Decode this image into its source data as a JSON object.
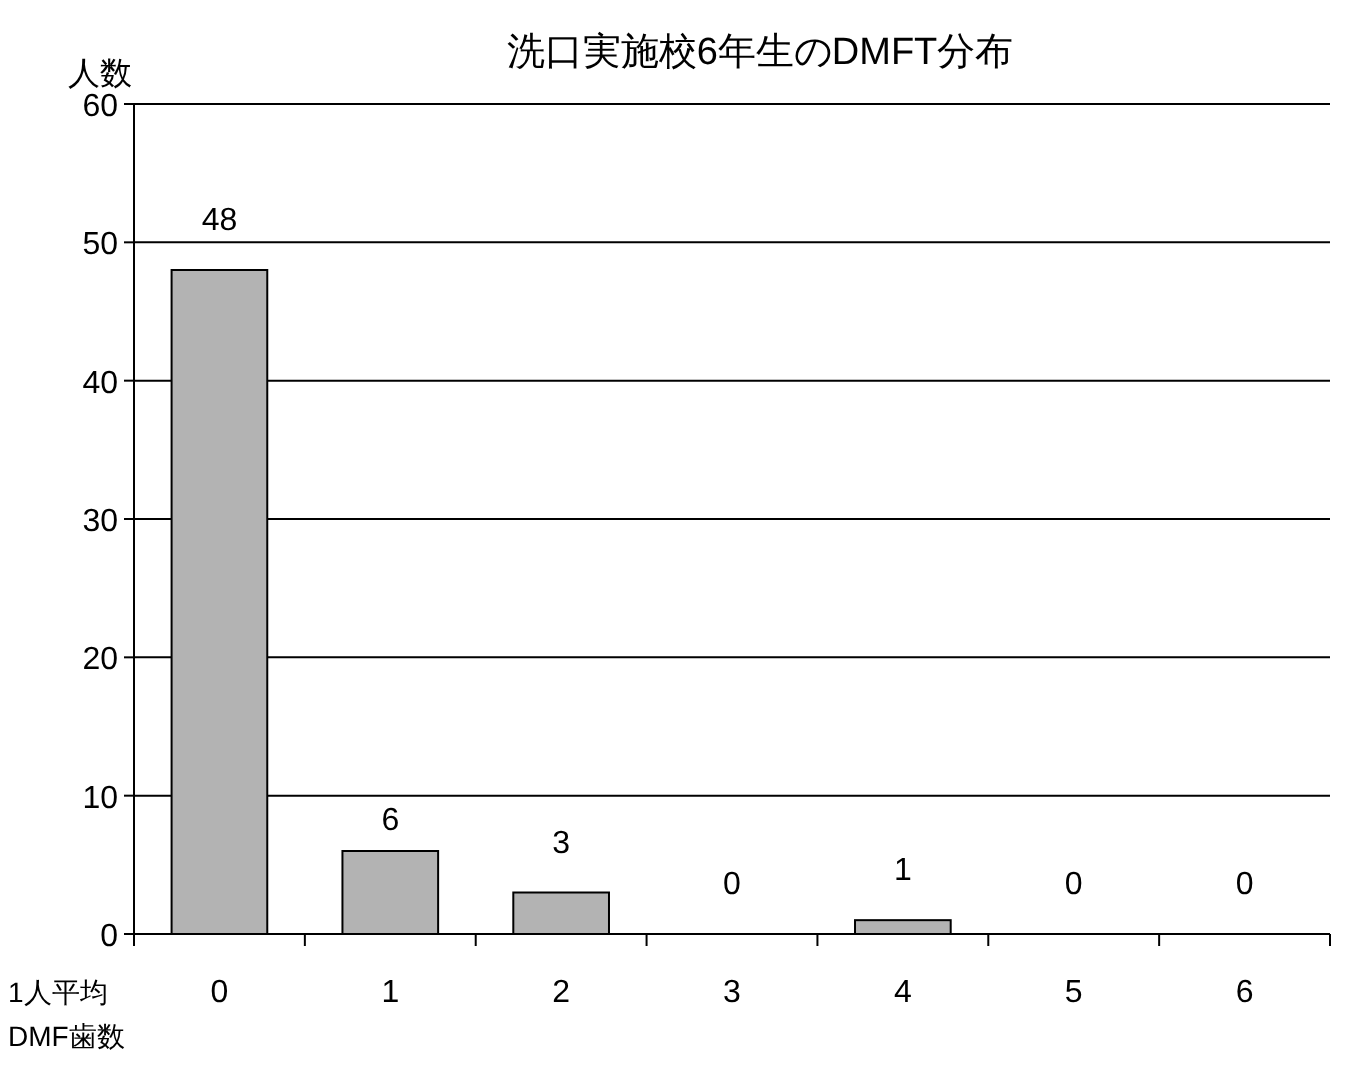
{
  "chart_data": {
    "type": "bar",
    "title": "洗口実施校6年生のDMFT分布",
    "ylabel": "人数",
    "xlabel": "1人平均\nDMF歯数",
    "categories": [
      "0",
      "1",
      "2",
      "3",
      "4",
      "5",
      "6"
    ],
    "values": [
      48,
      6,
      3,
      0,
      1,
      0,
      0
    ],
    "color": "#b3b3b3",
    "ylim": [
      0,
      60
    ],
    "yticks": [
      0,
      10,
      20,
      30,
      40,
      50,
      60
    ],
    "grid": "y",
    "data_labels": true
  }
}
